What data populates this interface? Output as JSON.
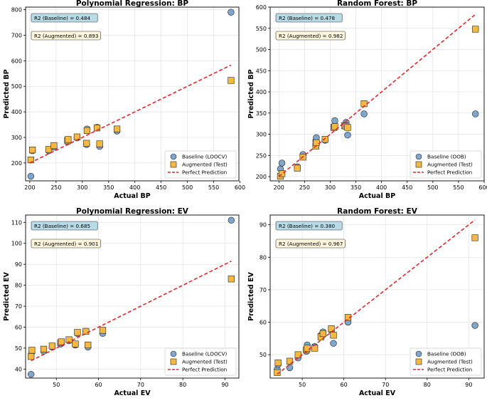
{
  "colors": {
    "baseline": "#7ea6cf",
    "augmented": "#f5b942",
    "perfect": "#e8262a",
    "box_baseline": "#b9dbe6",
    "box_augmented": "#fdf5dc",
    "grid": "#e2e2e2"
  },
  "chart_data": [
    {
      "type": "scatter",
      "title": "Polynomial Regression: BP",
      "xlabel": "Actual BP",
      "ylabel": "Predicted BP",
      "xlim": [
        192,
        598
      ],
      "ylim": [
        130,
        810
      ],
      "xticks": [
        200,
        250,
        300,
        350,
        400,
        450,
        500,
        550,
        600
      ],
      "yticks": [
        200,
        300,
        400,
        500,
        600,
        700,
        800
      ],
      "r2_baseline": "R2 (Baseline) = 0.484",
      "r2_augmented": "R2 (Augmented) = 0.893",
      "legend": [
        "Baseline (LOOCV)",
        "Augmented (Test)",
        "Perfect Prediction"
      ],
      "perfect_line": [
        [
          200,
          200
        ],
        [
          583,
          583
        ]
      ],
      "series": [
        {
          "name": "Baseline (LOOCV)",
          "points": [
            [
              202,
              148
            ],
            [
              205,
              248
            ],
            [
              236,
              248
            ],
            [
              246,
              262
            ],
            [
              272,
              283
            ],
            [
              273,
              290
            ],
            [
              290,
              298
            ],
            [
              308,
              272
            ],
            [
              309,
              333
            ],
            [
              328,
              340
            ],
            [
              333,
              265
            ],
            [
              366,
              325
            ],
            [
              583,
              790
            ]
          ]
        },
        {
          "name": "Augmented (Test)",
          "points": [
            [
              202,
              212
            ],
            [
              205,
              251
            ],
            [
              236,
              253
            ],
            [
              246,
              268
            ],
            [
              272,
              287
            ],
            [
              273,
              292
            ],
            [
              290,
              302
            ],
            [
              308,
              277
            ],
            [
              309,
              327
            ],
            [
              328,
              337
            ],
            [
              333,
              275
            ],
            [
              366,
              333
            ],
            [
              583,
              523
            ]
          ]
        }
      ]
    },
    {
      "type": "scatter",
      "title": "Random Forest: BP",
      "xlabel": "Actual BP",
      "ylabel": "Predicted BP",
      "xlim": [
        183,
        600
      ],
      "ylim": [
        190,
        600
      ],
      "xticks": [
        200,
        250,
        300,
        350,
        400,
        450,
        500,
        550,
        600
      ],
      "yticks": [
        200,
        250,
        300,
        350,
        400,
        450,
        500,
        550,
        600
      ],
      "r2_baseline": "R2 (Baseline) = 0.478",
      "r2_augmented": "R2 (Augmented) = 0.982",
      "legend": [
        "Baseline (OOB)",
        "Augmented (Test)",
        "Perfect Prediction"
      ],
      "perfect_line": [
        [
          200,
          200
        ],
        [
          583,
          583
        ]
      ],
      "series": [
        {
          "name": "Baseline (OOB)",
          "points": [
            [
              203,
              218
            ],
            [
              206,
              232
            ],
            [
              236,
              223
            ],
            [
              247,
              252
            ],
            [
              272,
              285
            ],
            [
              273,
              292
            ],
            [
              290,
              286
            ],
            [
              307,
              318
            ],
            [
              309,
              332
            ],
            [
              328,
              320
            ],
            [
              331,
              328
            ],
            [
              334,
              298
            ],
            [
              366,
              348
            ],
            [
              583,
              348
            ]
          ]
        },
        {
          "name": "Augmented (Test)",
          "points": [
            [
              203,
              201
            ],
            [
              206,
              207
            ],
            [
              236,
              220
            ],
            [
              247,
              246
            ],
            [
              272,
              272
            ],
            [
              273,
              280
            ],
            [
              290,
              288
            ],
            [
              307,
              316
            ],
            [
              309,
              318
            ],
            [
              328,
              320
            ],
            [
              331,
              319
            ],
            [
              334,
              316
            ],
            [
              366,
              372
            ],
            [
              583,
              548
            ]
          ]
        }
      ]
    },
    {
      "type": "scatter",
      "title": "Polynomial Regression: EV",
      "xlabel": "Actual EV",
      "ylabel": "Predicted EV",
      "xlim": [
        42.7,
        93.3
      ],
      "ylim": [
        35.7,
        113.5
      ],
      "xticks": [
        50,
        60,
        70,
        80,
        90
      ],
      "yticks": [
        40,
        50,
        60,
        70,
        80,
        90,
        100,
        110
      ],
      "r2_baseline": "R2 (Baseline) = 0.685",
      "r2_augmented": "R2 (Augmented) = 0.901",
      "legend": [
        "Baseline (LOOCV)",
        "Augmented (Test)",
        "Perfect Prediction"
      ],
      "perfect_line": [
        [
          44,
          44
        ],
        [
          91.5,
          91.5
        ]
      ],
      "series": [
        {
          "name": "Baseline (LOOCV)",
          "points": [
            [
              44,
              37.5
            ],
            [
              44.2,
              48
            ],
            [
              47,
              48.5
            ],
            [
              49,
              50.5
            ],
            [
              51,
              52
            ],
            [
              51.2,
              52.8
            ],
            [
              53,
              53.5
            ],
            [
              54.5,
              51.5
            ],
            [
              55,
              57
            ],
            [
              57,
              58
            ],
            [
              57.5,
              50.5
            ],
            [
              61,
              57
            ],
            [
              91.5,
              111
            ]
          ]
        },
        {
          "name": "Augmented (Test)",
          "points": [
            [
              44,
              46
            ],
            [
              44.2,
              49
            ],
            [
              47,
              49.5
            ],
            [
              49,
              51
            ],
            [
              51,
              52.5
            ],
            [
              51.2,
              53
            ],
            [
              53,
              54
            ],
            [
              54.5,
              52
            ],
            [
              55,
              57.5
            ],
            [
              57,
              58
            ],
            [
              57.5,
              51.5
            ],
            [
              61,
              58.5
            ],
            [
              91.5,
              83
            ]
          ]
        }
      ]
    },
    {
      "type": "scatter",
      "title": "Random Forest: EV",
      "xlabel": "Actual EV",
      "ylabel": "Predicted EV",
      "xlim": [
        42.3,
        93.7
      ],
      "ylim": [
        42.8,
        93
      ],
      "xticks": [
        50,
        60,
        70,
        80,
        90
      ],
      "yticks": [
        50,
        60,
        70,
        80,
        90
      ],
      "r2_baseline": "R2 (Baseline) = 0.380",
      "r2_augmented": "R2 (Augmented) = 0.967",
      "legend": [
        "Baseline (OOB)",
        "Augmented (Test)",
        "Perfect Prediction"
      ],
      "perfect_line": [
        [
          44,
          44
        ],
        [
          91.5,
          91.5
        ]
      ],
      "series": [
        {
          "name": "Baseline (OOB)",
          "points": [
            [
              44,
              45.5
            ],
            [
              44.2,
              47
            ],
            [
              47,
              46
            ],
            [
              49,
              49
            ],
            [
              51,
              51
            ],
            [
              51.2,
              53
            ],
            [
              53,
              52.5
            ],
            [
              54.5,
              56
            ],
            [
              55,
              57
            ],
            [
              57,
              57.5
            ],
            [
              57.5,
              53.5
            ],
            [
              61,
              60
            ],
            [
              91.5,
              59
            ]
          ]
        },
        {
          "name": "Augmented (Test)",
          "points": [
            [
              44,
              44.5
            ],
            [
              44.2,
              47.5
            ],
            [
              47,
              48
            ],
            [
              49,
              50
            ],
            [
              51,
              51.5
            ],
            [
              51.2,
              52
            ],
            [
              53,
              52
            ],
            [
              54.5,
              55.5
            ],
            [
              55,
              56.5
            ],
            [
              57,
              58
            ],
            [
              57.5,
              56
            ],
            [
              61,
              61.5
            ],
            [
              91.5,
              86
            ]
          ]
        }
      ]
    }
  ]
}
